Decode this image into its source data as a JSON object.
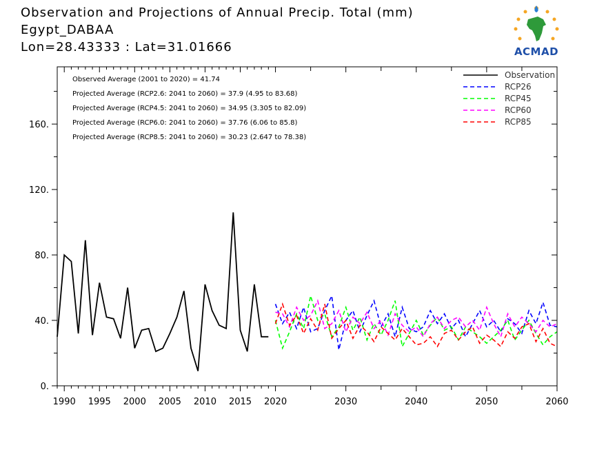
{
  "header": {
    "title": "Observation and Projections of Annual Precip. Total (mm)",
    "location": "Egypt_DABAA",
    "coords": "Lon=28.43333 : Lat=31.01666"
  },
  "logo": {
    "text": "ACMAD"
  },
  "annotations": [
    "Observed Average (2001 to 2020) = 41.74",
    "Projected Average (RCP2.6: 2041 to 2060) = 37.9 (4.95 to 83.68)",
    "Projected Average (RCP4.5: 2041 to 2060) = 34.95 (3.305 to 82.09)",
    "Projected Average (RCP6.0: 2041 to 2060) = 37.76 (6.06 to 85.8)",
    "Projected Average (RCP8.5: 2041 to 2060) = 30.23 (2.647 to 78.38)"
  ],
  "colors": {
    "Observation": "#000000",
    "RCP26": "#0000ff",
    "RCP45": "#00ff00",
    "RCP60": "#ff00ff",
    "RCP85": "#ff0000"
  },
  "chart_data": {
    "type": "line",
    "xlim": [
      1989,
      2060
    ],
    "ylim": [
      0,
      195
    ],
    "xticks": [
      1990,
      1995,
      2000,
      2005,
      2010,
      2015,
      2020,
      2030,
      2040,
      2050,
      2060
    ],
    "xtick_labels": [
      "1990",
      "1995",
      "2000",
      "2005",
      "2010",
      "2015",
      "2020",
      "2030",
      "2040",
      "2050",
      "2060"
    ],
    "yticks": [
      0,
      40,
      80,
      120,
      160
    ],
    "ytick_labels": [
      "0.",
      "40.",
      "80.",
      "120.",
      "160."
    ],
    "legend_position": "top-right",
    "series": [
      {
        "name": "Observation",
        "style": "solid",
        "x": [
          1989,
          1990,
          1991,
          1992,
          1993,
          1994,
          1995,
          1996,
          1997,
          1998,
          1999,
          2000,
          2001,
          2002,
          2003,
          2004,
          2005,
          2006,
          2007,
          2008,
          2009,
          2010,
          2011,
          2012,
          2013,
          2014,
          2015,
          2016,
          2017,
          2018,
          2019
        ],
        "values": [
          30,
          80,
          76,
          32,
          89,
          31,
          63,
          42,
          41,
          29,
          60,
          23,
          34,
          35,
          21,
          23,
          32,
          42,
          58,
          23,
          9,
          62,
          46,
          37,
          35,
          106,
          34,
          21,
          62,
          30,
          30
        ]
      },
      {
        "name": "RCP26",
        "style": "dashed",
        "x": [
          2020,
          2021,
          2022,
          2023,
          2024,
          2025,
          2026,
          2027,
          2028,
          2029,
          2030,
          2031,
          2032,
          2033,
          2034,
          2035,
          2036,
          2037,
          2038,
          2039,
          2040,
          2041,
          2042,
          2043,
          2044,
          2045,
          2046,
          2047,
          2048,
          2049,
          2050,
          2051,
          2052,
          2053,
          2054,
          2055,
          2056,
          2057,
          2058,
          2059,
          2060
        ],
        "values": [
          50,
          38,
          45,
          35,
          48,
          33,
          35,
          46,
          55,
          22,
          40,
          46,
          33,
          43,
          52,
          36,
          44,
          30,
          48,
          35,
          33,
          36,
          46,
          38,
          44,
          35,
          40,
          30,
          38,
          46,
          36,
          40,
          33,
          41,
          38,
          32,
          46,
          38,
          51,
          37,
          36
        ]
      },
      {
        "name": "RCP45",
        "style": "dashed",
        "x": [
          2020,
          2021,
          2022,
          2023,
          2024,
          2025,
          2026,
          2027,
          2028,
          2029,
          2030,
          2031,
          2032,
          2033,
          2034,
          2035,
          2036,
          2037,
          2038,
          2039,
          2040,
          2041,
          2042,
          2043,
          2044,
          2045,
          2046,
          2047,
          2048,
          2049,
          2050,
          2051,
          2052,
          2053,
          2054,
          2055,
          2056,
          2057,
          2058,
          2059,
          2060
        ],
        "values": [
          40,
          23,
          33,
          44,
          35,
          55,
          40,
          44,
          30,
          36,
          48,
          34,
          42,
          28,
          38,
          31,
          40,
          52,
          24,
          32,
          40,
          31,
          37,
          42,
          34,
          36,
          28,
          36,
          33,
          30,
          26,
          30,
          34,
          40,
          28,
          34,
          40,
          32,
          25,
          30,
          33
        ]
      },
      {
        "name": "RCP60",
        "style": "dashed",
        "x": [
          2020,
          2021,
          2022,
          2023,
          2024,
          2025,
          2026,
          2027,
          2028,
          2029,
          2030,
          2031,
          2032,
          2033,
          2034,
          2035,
          2036,
          2037,
          2038,
          2039,
          2040,
          2041,
          2042,
          2043,
          2044,
          2045,
          2046,
          2047,
          2048,
          2049,
          2050,
          2051,
          2052,
          2053,
          2054,
          2055,
          2056,
          2057,
          2058,
          2059,
          2060
        ],
        "values": [
          45,
          44,
          36,
          48,
          40,
          43,
          52,
          35,
          38,
          46,
          33,
          42,
          38,
          45,
          35,
          40,
          31,
          44,
          37,
          33,
          36,
          30,
          38,
          42,
          35,
          40,
          42,
          36,
          40,
          34,
          48,
          38,
          30,
          44,
          36,
          42,
          38,
          33,
          40,
          36,
          38
        ]
      },
      {
        "name": "RCP85",
        "style": "dashed",
        "x": [
          2020,
          2021,
          2022,
          2023,
          2024,
          2025,
          2026,
          2027,
          2028,
          2029,
          2030,
          2031,
          2032,
          2033,
          2034,
          2035,
          2036,
          2037,
          2038,
          2039,
          2040,
          2041,
          2042,
          2043,
          2044,
          2045,
          2046,
          2047,
          2048,
          2049,
          2050,
          2051,
          2052,
          2053,
          2054,
          2055,
          2056,
          2057,
          2058,
          2059,
          2060
        ],
        "values": [
          38,
          50,
          37,
          43,
          32,
          41,
          34,
          50,
          29,
          35,
          40,
          29,
          37,
          33,
          27,
          36,
          32,
          28,
          35,
          30,
          25,
          26,
          30,
          24,
          32,
          34,
          28,
          33,
          36,
          26,
          31,
          28,
          24,
          33,
          29,
          36,
          38,
          27,
          35,
          26,
          24
        ]
      }
    ]
  }
}
